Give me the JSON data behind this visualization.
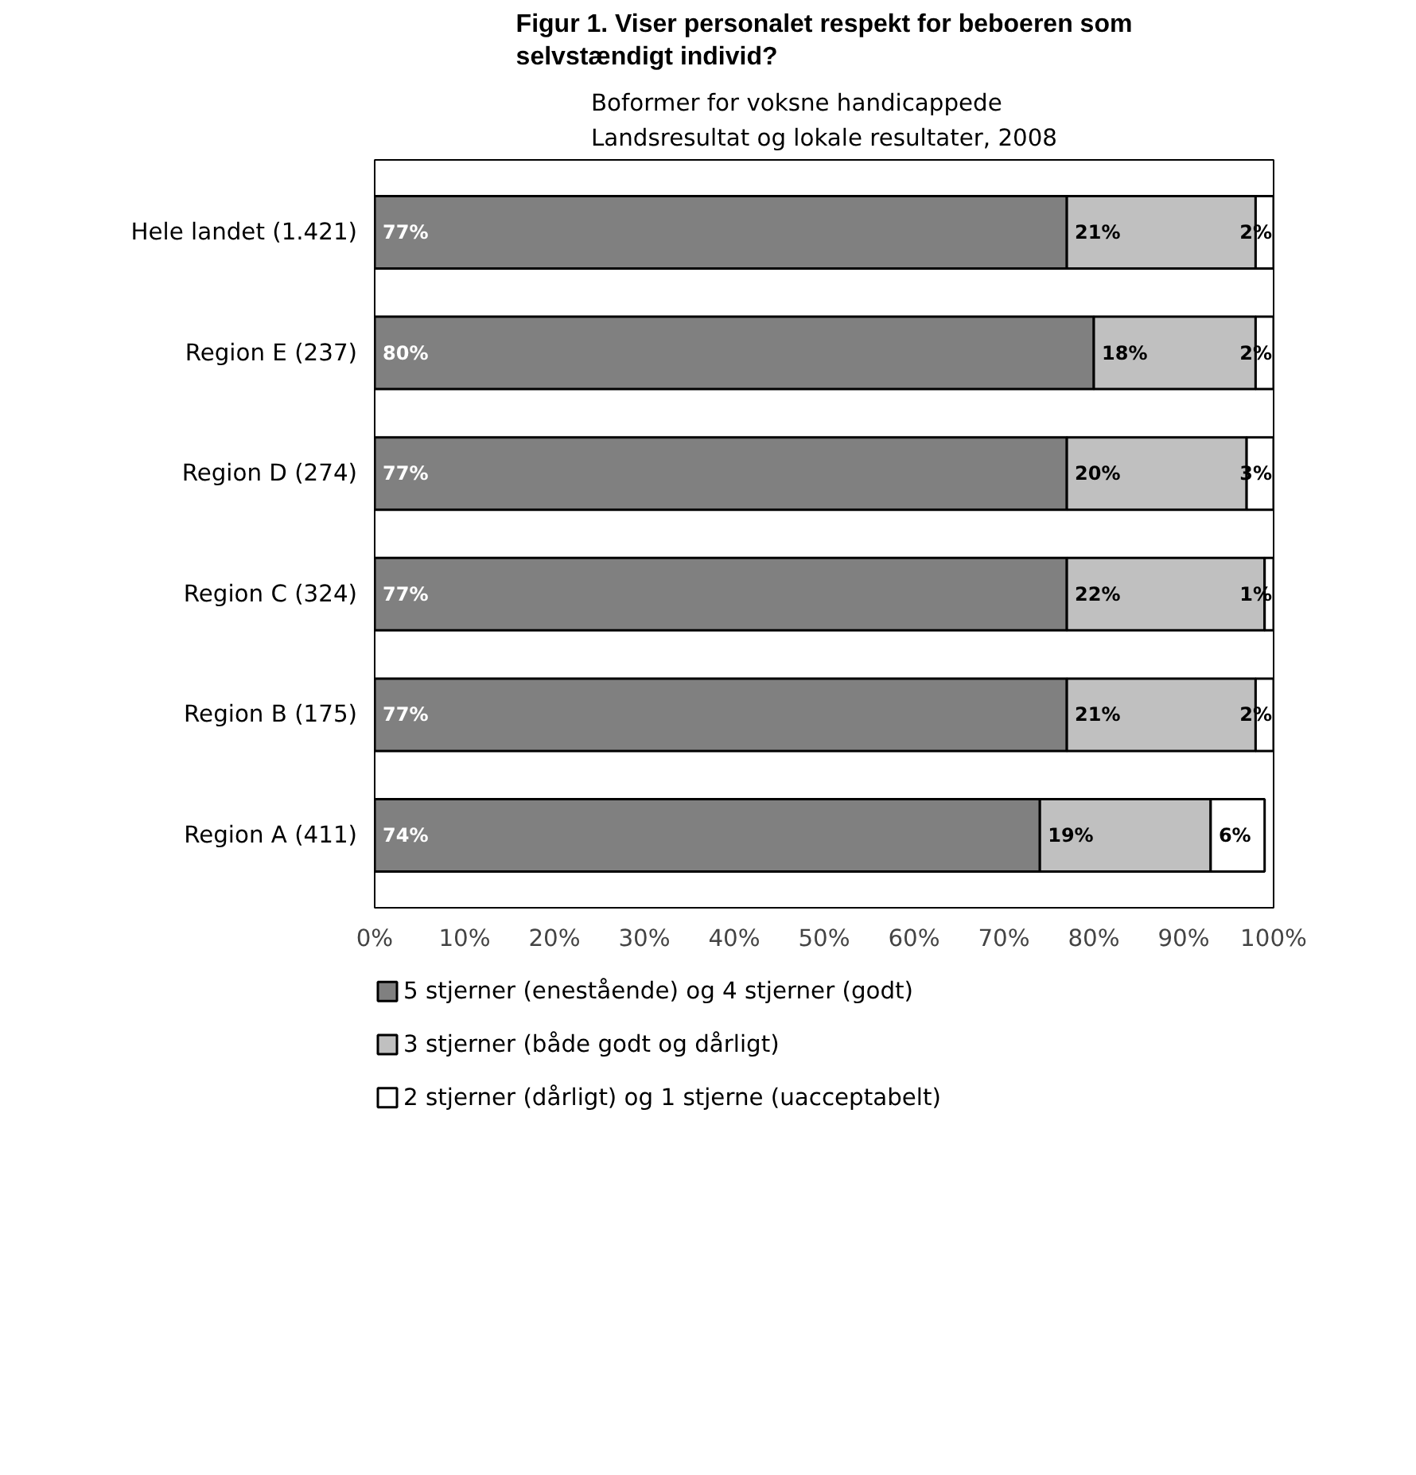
{
  "chart_data": {
    "type": "bar",
    "orientation": "horizontal",
    "stacked": true,
    "title": "Figur 1. Viser personalet respekt for beboeren som selvstændigt individ?",
    "subtitle": "Boformer for voksne handicappede\nLandsresultat og lokale resultater, 2008",
    "categories": [
      "Hele landet (1.421)",
      "Region E (237)",
      "Region D (274)",
      "Region C (324)",
      "Region B (175)",
      "Region A (411)"
    ],
    "series": [
      {
        "name": "5 stjerner (enestående) og 4 stjerner (godt)",
        "color": "#808080",
        "values": [
          77,
          80,
          77,
          77,
          77,
          74
        ],
        "value_labels": [
          "77%",
          "80%",
          "77%",
          "77%",
          "77%",
          "74%"
        ]
      },
      {
        "name": "3 stjerner (både godt og dårligt)",
        "color": "#c0c0c0",
        "values": [
          21,
          18,
          20,
          22,
          21,
          19
        ],
        "value_labels": [
          "21%",
          "18%",
          "20%",
          "22%",
          "21%",
          "19%"
        ]
      },
      {
        "name": "2 stjerner (dårligt) og 1 stjerne (uacceptabelt)",
        "color": "#ffffff",
        "values": [
          2,
          2,
          3,
          1,
          2,
          6
        ],
        "value_labels": [
          "2%",
          "2%",
          "3%",
          "1%",
          "2%",
          "6%"
        ]
      }
    ],
    "xlim": [
      0,
      100
    ],
    "xticks": [
      {
        "value": 0,
        "label": "0%"
      },
      {
        "value": 10,
        "label": "10%"
      },
      {
        "value": 20,
        "label": "20%"
      },
      {
        "value": 30,
        "label": "30%"
      },
      {
        "value": 40,
        "label": "40%"
      },
      {
        "value": 50,
        "label": "50%"
      },
      {
        "value": 60,
        "label": "60%"
      },
      {
        "value": 70,
        "label": "70%"
      },
      {
        "value": 80,
        "label": "80%"
      },
      {
        "value": 90,
        "label": "90%"
      },
      {
        "value": 100,
        "label": "100%"
      }
    ],
    "grid": false,
    "legend": "bottom"
  }
}
